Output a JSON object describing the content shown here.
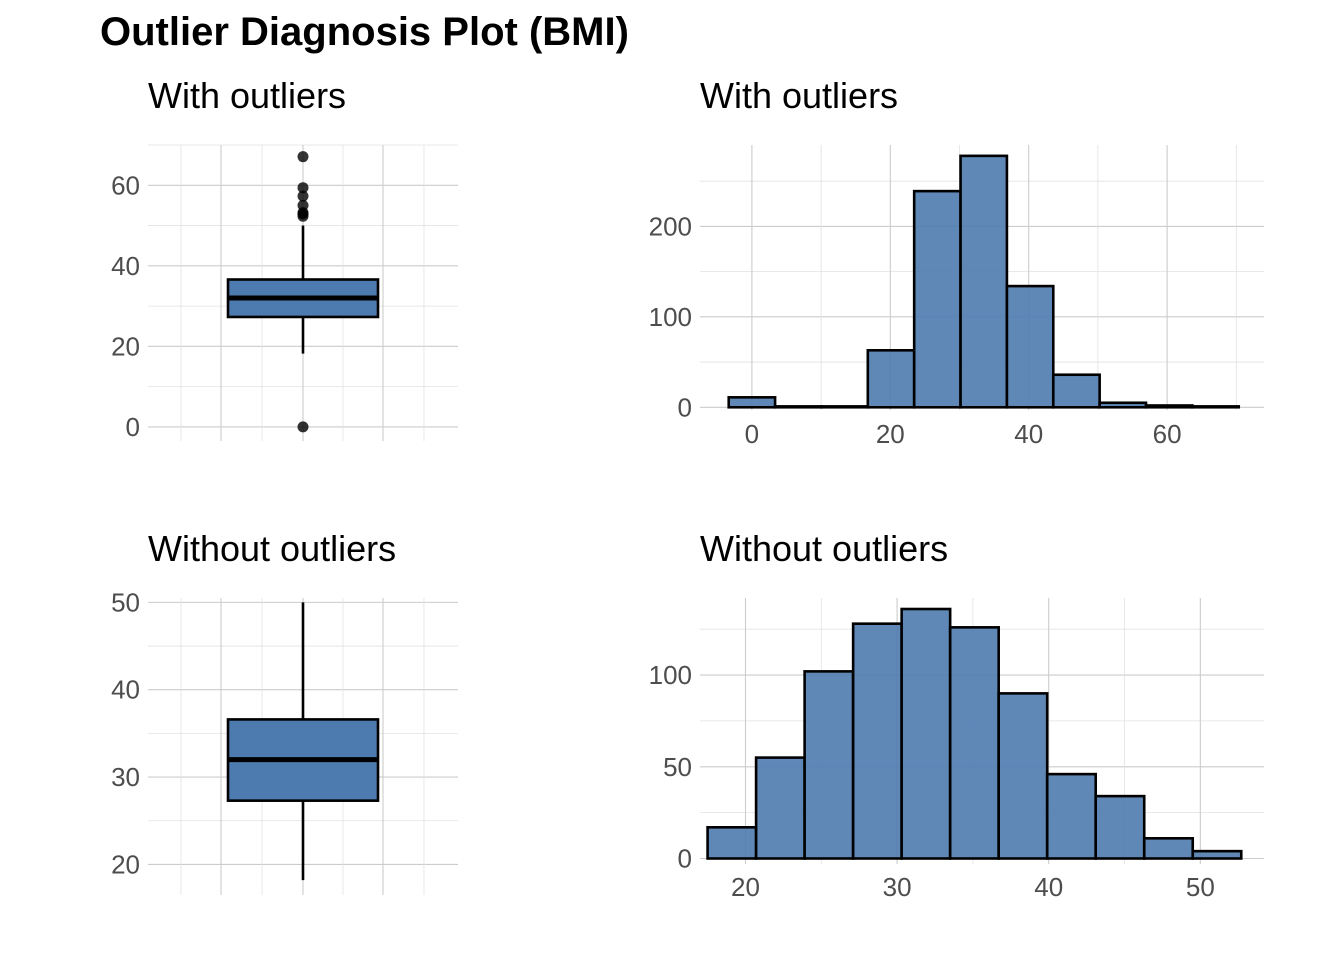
{
  "title": "Outlier Diagnosis Plot (BMI)",
  "colors": {
    "fill": "#4e7baf",
    "outline": "#000000",
    "grid": "#cccccc",
    "tick_text": "#4d4d4d"
  },
  "chart_data": [
    {
      "type": "boxplot",
      "title": "With outliers",
      "xlabel": "",
      "ylabel": "",
      "ylim": [
        -3.5,
        70
      ],
      "yticks": [
        0,
        20,
        40,
        60
      ],
      "grid": true,
      "box": {
        "q1": 27.3,
        "median": 32,
        "q3": 36.6,
        "whisker_low": 18.2,
        "whisker_high": 50.0
      },
      "outliers": [
        0,
        52.3,
        52.9,
        53.2,
        55.0,
        57.3,
        59.4,
        67.1
      ]
    },
    {
      "type": "bar",
      "title": "With outliers",
      "xlabel": "",
      "ylabel": "",
      "xlim": [
        -7.5,
        74
      ],
      "ylim": [
        -3,
        290
      ],
      "xticks": [
        0,
        20,
        40,
        60
      ],
      "yticks": [
        0,
        100,
        200
      ],
      "grid": true,
      "bin_width": 6.7,
      "bin_centers": [
        0,
        6.7,
        13.4,
        20.1,
        26.8,
        33.5,
        40.2,
        46.9,
        53.6,
        60.3,
        67.0
      ],
      "values": [
        11,
        1,
        1,
        63,
        239,
        278,
        134,
        36,
        5,
        2,
        1
      ]
    },
    {
      "type": "boxplot",
      "title": "Without outliers",
      "xlabel": "",
      "ylabel": "",
      "ylim": [
        16.5,
        50.5
      ],
      "yticks": [
        20,
        30,
        40,
        50
      ],
      "grid": true,
      "box": {
        "q1": 27.3,
        "median": 32,
        "q3": 36.6,
        "whisker_low": 18.2,
        "whisker_high": 50.0
      },
      "outliers": []
    },
    {
      "type": "bar",
      "title": "Without outliers",
      "xlabel": "",
      "ylabel": "",
      "xlim": [
        17,
        54.2
      ],
      "ylim": [
        -3,
        142
      ],
      "xticks": [
        20,
        30,
        40,
        50
      ],
      "yticks": [
        0,
        50,
        100
      ],
      "grid": true,
      "bin_width": 3.2,
      "bin_centers": [
        19.1,
        22.3,
        25.5,
        28.7,
        31.9,
        35.1,
        38.3,
        41.5,
        44.7,
        47.9,
        51.1
      ],
      "values": [
        17,
        55,
        102,
        128,
        136,
        126,
        90,
        46,
        34,
        11,
        4
      ]
    }
  ]
}
